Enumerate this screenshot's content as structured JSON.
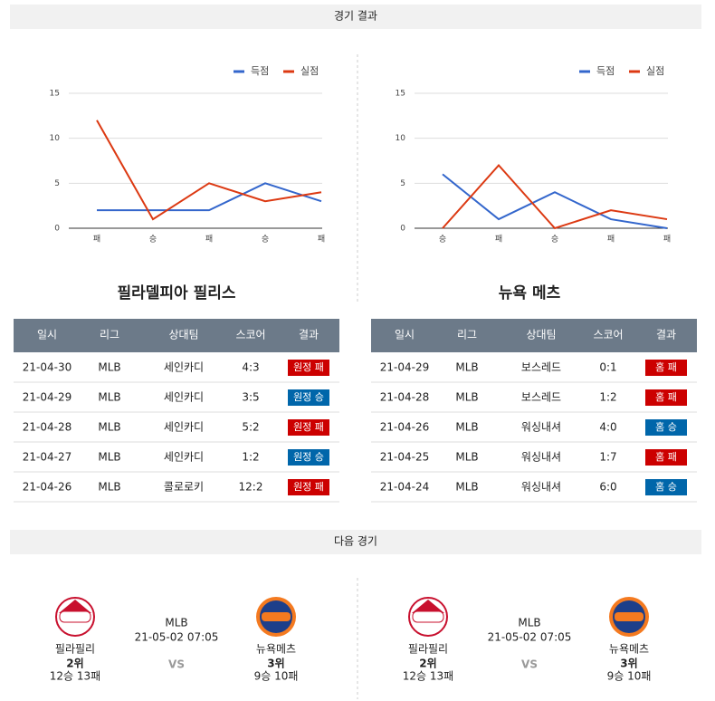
{
  "sections": [
    "경기 결과",
    "다음 경기"
  ],
  "chart_data": [
    {
      "type": "line",
      "categories": [
        "패",
        "승",
        "패",
        "승",
        "패"
      ],
      "series": [
        {
          "name": "득점",
          "color": "#3366cc",
          "values": [
            2,
            2,
            2,
            5,
            3
          ]
        },
        {
          "name": "실점",
          "color": "#dc3912",
          "values": [
            12,
            1,
            5,
            3,
            4
          ]
        }
      ],
      "ylim": [
        0,
        15
      ],
      "yticks": [
        0,
        5,
        10,
        15
      ],
      "grid": true,
      "legend": "top-right"
    },
    {
      "type": "line",
      "categories": [
        "승",
        "패",
        "승",
        "패",
        "패"
      ],
      "series": [
        {
          "name": "득점",
          "color": "#3366cc",
          "values": [
            6,
            1,
            4,
            1,
            0
          ]
        },
        {
          "name": "실점",
          "color": "#dc3912",
          "values": [
            0,
            7,
            0,
            2,
            1
          ]
        }
      ],
      "ylim": [
        0,
        15
      ],
      "yticks": [
        0,
        5,
        10,
        15
      ],
      "grid": true,
      "legend": "top-right"
    }
  ],
  "teams": [
    "필라델피아 필리스",
    "뉴욕 메츠"
  ],
  "tables": [
    {
      "header": [
        "일시",
        "리그",
        "상대팀",
        "스코어",
        "결과"
      ],
      "rows": [
        [
          "21-04-30",
          "MLB",
          "세인카디",
          "4:3",
          "원정 패"
        ],
        [
          "21-04-29",
          "MLB",
          "세인카디",
          "3:5",
          "원정 승"
        ],
        [
          "21-04-28",
          "MLB",
          "세인카디",
          "5:2",
          "원정 패"
        ],
        [
          "21-04-27",
          "MLB",
          "세인카디",
          "1:2",
          "원정 승"
        ],
        [
          "21-04-26",
          "MLB",
          "콜로로키",
          "12:2",
          "원정 패"
        ]
      ],
      "result_colors": [
        "#cc0000",
        "#0066aa",
        "#cc0000",
        "#0066aa",
        "#cc0000"
      ]
    },
    {
      "header": [
        "일시",
        "리그",
        "상대팀",
        "스코어",
        "결과"
      ],
      "rows": [
        [
          "21-04-29",
          "MLB",
          "보스레드",
          "0:1",
          "홈 패"
        ],
        [
          "21-04-28",
          "MLB",
          "보스레드",
          "1:2",
          "홈 패"
        ],
        [
          "21-04-26",
          "MLB",
          "워싱내셔",
          "4:0",
          "홈 승"
        ],
        [
          "21-04-25",
          "MLB",
          "워싱내셔",
          "1:7",
          "홈 패"
        ],
        [
          "21-04-24",
          "MLB",
          "워싱내셔",
          "6:0",
          "홈 승"
        ]
      ],
      "result_colors": [
        "#cc0000",
        "#cc0000",
        "#0066aa",
        "#cc0000",
        "#0066aa"
      ]
    }
  ],
  "next_games": [
    {
      "league": "MLB",
      "datetime": "21-05-02 07:05",
      "vs": "VS",
      "home": {
        "name": "필라필리",
        "rank": "2위",
        "record": "12승 13패"
      },
      "away": {
        "name": "뉴욕메츠",
        "rank": "3위",
        "record": "9승 10패"
      }
    },
    {
      "league": "MLB",
      "datetime": "21-05-02 07:05",
      "vs": "VS",
      "home": {
        "name": "필라필리",
        "rank": "2위",
        "record": "12승 13패"
      },
      "away": {
        "name": "뉴욕메츠",
        "rank": "3위",
        "record": "9승 10패"
      }
    }
  ]
}
